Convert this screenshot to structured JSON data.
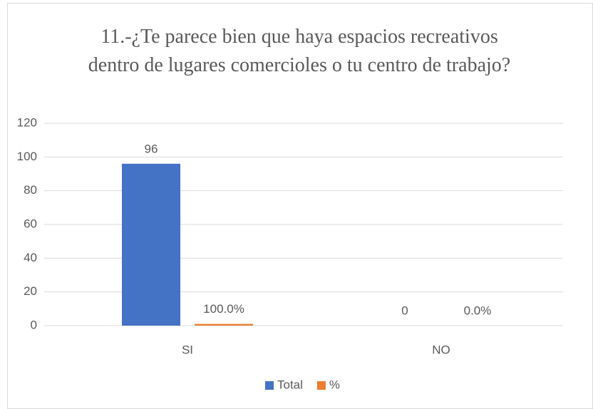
{
  "chart_data": {
    "type": "bar",
    "title": "11.-¿Te parece bien que haya espacios recreativos dentro de lugares comercioles o tu centro de trabajo?",
    "categories": [
      "SI",
      "NO"
    ],
    "series": [
      {
        "name": "Total",
        "color": "#4472c4",
        "values": [
          96,
          0
        ]
      },
      {
        "name": "%",
        "color": "#ed7d31",
        "values": [
          1,
          0
        ],
        "value_labels": [
          "100.0%",
          "0.0%"
        ]
      }
    ],
    "ylim": [
      0,
      120
    ],
    "yticks": [
      0,
      20,
      40,
      60,
      80,
      100,
      120
    ],
    "grid": true,
    "legend": "bottom"
  }
}
